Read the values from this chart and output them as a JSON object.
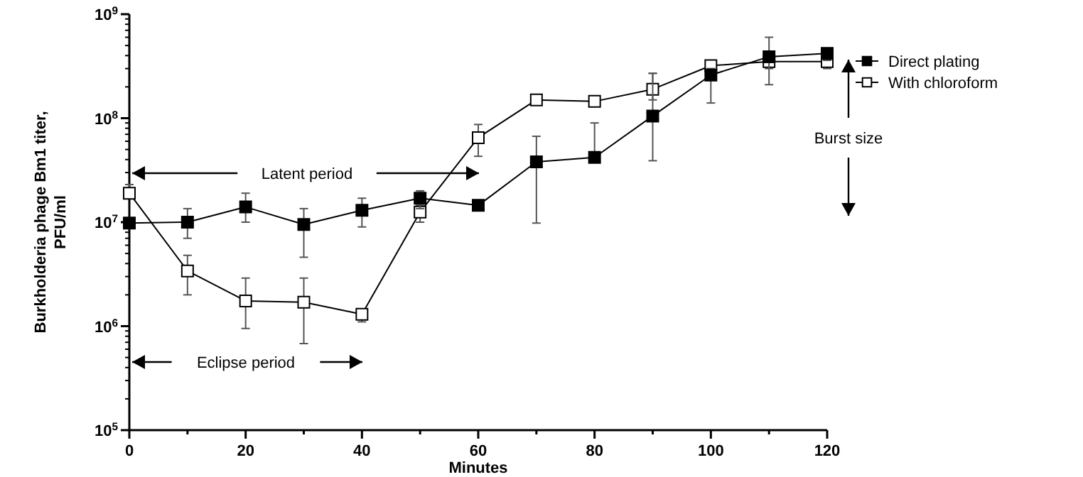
{
  "chart_data": {
    "type": "line",
    "ylabel": "Burkholderia phage Bm1 titer, PFU/ml",
    "xlabel": "Minutes",
    "log": true,
    "marker": "square",
    "legend": "top right",
    "grid": false,
    "x": [
      0,
      10,
      20,
      30,
      40,
      50,
      60,
      70,
      80,
      90,
      100,
      110,
      120
    ],
    "xlim": [
      0,
      120
    ],
    "xticks": [
      0,
      {
        "value": 10,
        "label": null
      },
      20,
      {
        "value": 30,
        "label": null
      },
      40,
      {
        "value": 50,
        "label": null
      },
      60,
      {
        "value": 70,
        "label": null
      },
      80,
      {
        "value": 90,
        "label": null
      },
      100,
      {
        "value": 110,
        "label": null
      },
      120
    ],
    "ylim": [
      100000,
      1000000000
    ],
    "yticks": [
      {
        "value": 100000,
        "label": "10$^{5}$"
      },
      {
        "value": 1000000,
        "label": "10$^{6}$"
      },
      {
        "value": 10000000,
        "label": "10$^{7}$"
      },
      {
        "value": 100000000,
        "label": "10$^{8}$"
      },
      {
        "value": 1000000000,
        "label": "10$^{9}$"
      }
    ],
    "series": [
      {
        "name": "Direct plating",
        "color": "#000000",
        "values": [
          9800000,
          10000000,
          14000000,
          9500000,
          13000000,
          17000000,
          14500000,
          38000000,
          42000000,
          105000000,
          260000000,
          390000000,
          420000000
        ],
        "errors": [
          null,
          [
            7000000,
            13500000
          ],
          [
            10000000,
            19000000
          ],
          [
            4600000,
            13500000
          ],
          [
            9000000,
            17000000
          ],
          [
            13500000,
            20000000
          ],
          null,
          [
            9800000,
            67000000
          ],
          [
            42000000,
            90000000
          ],
          [
            39000000,
            270000000
          ],
          [
            140000000,
            300000000
          ],
          [
            210000000,
            600000000
          ],
          [
            360000000,
            460000000
          ]
        ]
      },
      {
        "name": "With chloroform",
        "color": "#000000",
        "values": [
          19000000,
          3400000,
          1750000,
          1700000,
          1300000,
          12500000,
          65000000,
          150000000,
          145000000,
          190000000,
          320000000,
          350000000,
          350000000
        ],
        "errors": [
          [
            17000000,
            23000000
          ],
          [
            2000000,
            4800000
          ],
          [
            950000,
            2900000
          ],
          [
            680000,
            2900000
          ],
          [
            1100000,
            1400000
          ],
          [
            10000000,
            14500000
          ],
          [
            43000000,
            87000000
          ],
          null,
          null,
          [
            150000000,
            270000000
          ],
          [
            280000000,
            340000000
          ],
          [
            300000000,
            350000000
          ],
          [
            300000000,
            400000000
          ]
        ]
      }
    ],
    "annotations": [
      "Latent period",
      "Eclipse period",
      "Burst size"
    ]
  }
}
